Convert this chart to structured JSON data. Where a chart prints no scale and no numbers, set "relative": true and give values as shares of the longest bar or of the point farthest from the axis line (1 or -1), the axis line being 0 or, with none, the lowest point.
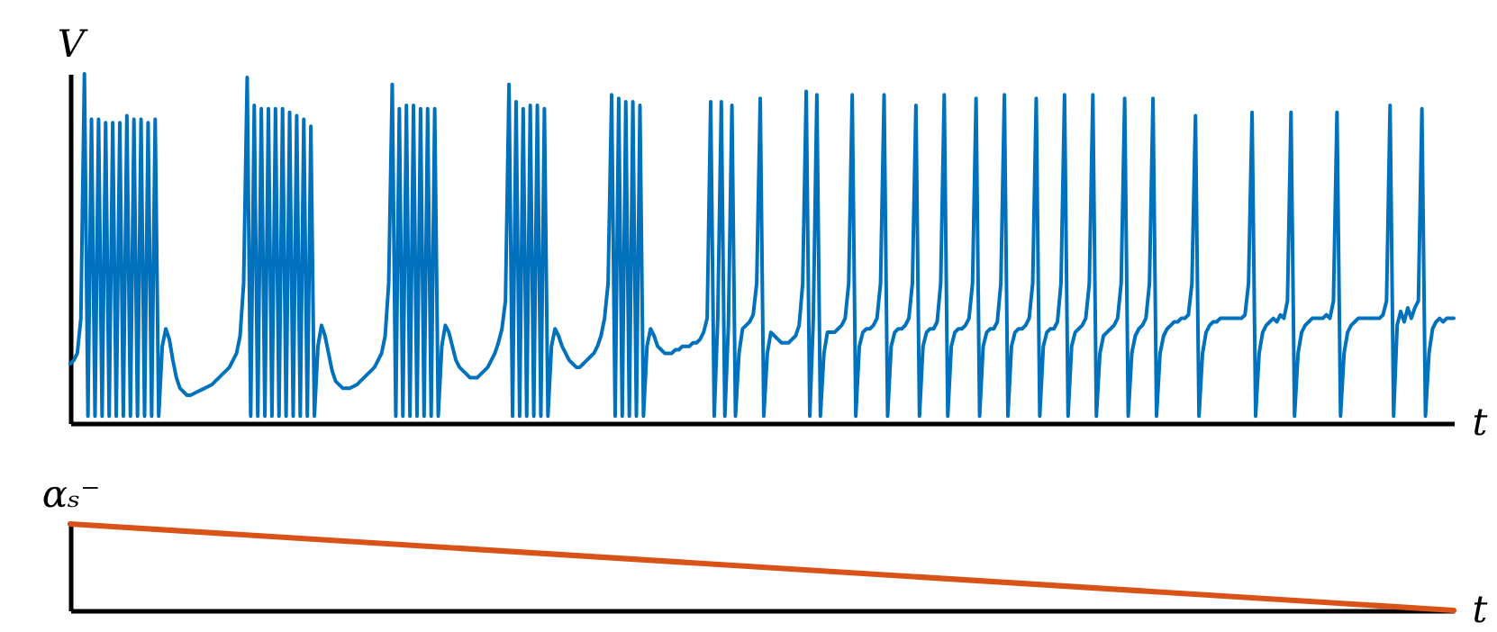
{
  "chart_data": [
    {
      "type": "line",
      "xlabel": "t",
      "ylabel": "V",
      "relative": true,
      "categories": [
        null,
        null,
        null,
        null,
        null,
        null,
        null,
        null,
        null,
        null,
        null,
        null,
        null,
        null,
        null,
        null,
        null,
        null,
        null,
        null,
        null,
        null,
        null,
        null,
        null,
        null,
        null,
        null,
        null,
        null,
        null,
        null,
        null,
        null,
        null,
        null,
        null,
        null,
        null,
        null,
        null,
        null,
        null,
        null,
        null,
        null,
        null,
        null,
        null,
        null,
        null,
        null,
        null,
        null,
        null,
        null,
        null,
        null,
        null,
        null,
        null,
        null,
        null,
        null,
        null,
        null,
        null,
        null,
        null,
        null,
        null,
        null,
        null,
        null,
        null,
        null,
        null,
        null,
        null,
        null,
        null,
        null,
        null,
        null,
        null,
        null,
        null,
        null,
        null,
        null,
        null,
        null,
        null,
        null,
        null,
        null,
        null,
        null,
        null,
        null,
        null,
        null,
        null,
        null,
        null,
        null,
        null,
        null,
        null,
        null,
        null,
        null,
        null,
        null,
        null,
        null,
        null,
        null,
        null,
        null,
        null,
        null,
        null,
        null,
        null,
        null,
        null,
        null,
        null,
        null,
        null,
        null,
        null,
        null,
        null,
        null,
        null,
        null,
        null,
        null,
        null,
        null,
        null,
        null,
        null,
        null,
        null,
        null,
        null,
        null,
        null,
        null,
        null,
        null,
        null,
        null,
        null,
        null,
        null,
        null,
        null,
        null,
        null,
        null,
        null,
        null,
        null,
        null,
        null,
        null,
        null,
        null,
        null,
        null,
        null,
        null,
        null,
        null,
        null,
        null,
        null,
        null,
        null,
        null,
        null,
        null,
        null,
        null,
        null,
        null,
        null,
        null,
        null,
        null,
        null,
        null,
        null,
        null,
        null,
        null,
        null,
        null,
        null,
        null,
        null,
        null,
        null,
        null,
        null,
        null,
        null,
        null,
        null,
        null,
        null,
        null,
        null,
        null,
        null,
        null,
        null,
        null,
        null,
        null,
        null,
        null,
        null,
        null,
        null,
        null,
        null,
        null,
        null,
        null,
        null,
        null,
        null,
        null,
        null,
        null,
        null,
        null,
        null,
        null,
        null,
        null,
        null,
        null,
        null,
        null,
        null,
        null,
        null,
        null,
        null,
        null,
        null,
        null,
        null,
        null,
        null,
        null,
        null,
        null,
        null,
        null,
        null,
        null,
        null,
        null,
        null,
        null,
        null,
        null,
        null,
        null,
        null,
        null,
        null,
        null,
        null,
        null,
        null,
        null,
        null,
        null,
        null,
        null,
        null,
        null,
        null,
        null,
        null,
        null,
        null,
        null,
        null,
        null,
        null,
        null,
        null,
        null,
        null,
        null,
        null,
        null,
        null,
        null,
        null,
        null,
        null,
        null,
        null,
        null,
        null,
        null,
        null,
        null,
        null,
        null,
        null,
        null,
        null,
        null,
        null,
        null,
        null,
        null,
        null,
        null,
        null,
        null,
        null,
        null,
        null,
        null,
        null,
        null,
        null,
        null,
        null,
        null,
        null,
        null,
        null,
        null,
        null,
        null,
        null,
        null,
        null,
        null,
        null,
        null,
        null,
        null,
        null,
        null,
        null,
        null,
        null,
        null,
        null,
        null,
        null,
        null,
        null,
        null,
        null,
        null,
        null,
        null,
        null,
        null,
        null,
        null,
        null,
        null,
        null,
        null,
        null,
        null,
        null,
        null,
        null,
        null,
        null,
        null,
        null,
        null,
        null,
        null
      ],
      "series": [
        {
          "color": "#0072bd",
          "values": [
            0.17,
            0.18,
            0.2,
            0.3,
            1.0,
            0.02,
            0.87,
            0.02,
            0.87,
            0.02,
            0.86,
            0.02,
            0.86,
            0.02,
            0.86,
            0.02,
            0.88,
            0.02,
            0.87,
            0.02,
            0.87,
            0.02,
            0.86,
            0.02,
            0.87,
            0.02,
            0.22,
            0.27,
            0.24,
            0.18,
            0.13,
            0.1,
            0.09,
            0.08,
            0.08,
            0.085,
            0.09,
            0.095,
            0.1,
            0.105,
            0.11,
            0.12,
            0.13,
            0.14,
            0.15,
            0.16,
            0.18,
            0.2,
            0.25,
            0.4,
            0.99,
            0.02,
            0.91,
            0.02,
            0.9,
            0.02,
            0.9,
            0.02,
            0.9,
            0.02,
            0.9,
            0.02,
            0.89,
            0.02,
            0.88,
            0.02,
            0.87,
            0.02,
            0.85,
            0.02,
            0.22,
            0.28,
            0.25,
            0.2,
            0.15,
            0.12,
            0.11,
            0.1,
            0.1,
            0.1,
            0.105,
            0.11,
            0.12,
            0.13,
            0.14,
            0.15,
            0.16,
            0.18,
            0.2,
            0.25,
            0.4,
            0.97,
            0.02,
            0.9,
            0.02,
            0.91,
            0.02,
            0.91,
            0.02,
            0.9,
            0.02,
            0.9,
            0.02,
            0.9,
            0.02,
            0.22,
            0.28,
            0.26,
            0.22,
            0.18,
            0.16,
            0.15,
            0.14,
            0.13,
            0.13,
            0.13,
            0.14,
            0.15,
            0.16,
            0.18,
            0.2,
            0.23,
            0.27,
            0.35,
            0.97,
            0.02,
            0.92,
            0.02,
            0.9,
            0.02,
            0.91,
            0.02,
            0.91,
            0.02,
            0.9,
            0.02,
            0.22,
            0.27,
            0.25,
            0.22,
            0.2,
            0.18,
            0.17,
            0.16,
            0.16,
            0.17,
            0.18,
            0.19,
            0.2,
            0.22,
            0.25,
            0.3,
            0.4,
            0.94,
            0.02,
            0.93,
            0.02,
            0.92,
            0.02,
            0.92,
            0.02,
            0.91,
            0.02,
            0.22,
            0.27,
            0.25,
            0.22,
            0.21,
            0.2,
            0.2,
            0.2,
            0.21,
            0.21,
            0.22,
            0.22,
            0.22,
            0.23,
            0.23,
            0.24,
            0.26,
            0.3,
            0.92,
            0.02,
            0.3,
            0.92,
            0.02,
            0.28,
            0.91,
            0.02,
            0.2,
            0.27,
            0.28,
            0.29,
            0.31,
            0.4,
            0.93,
            0.02,
            0.2,
            0.26,
            0.25,
            0.24,
            0.23,
            0.23,
            0.23,
            0.24,
            0.25,
            0.28,
            0.4,
            0.95,
            0.02,
            0.3,
            0.94,
            0.02,
            0.2,
            0.26,
            0.26,
            0.26,
            0.27,
            0.28,
            0.3,
            0.4,
            0.94,
            0.02,
            0.22,
            0.26,
            0.27,
            0.27,
            0.28,
            0.3,
            0.4,
            0.94,
            0.02,
            0.22,
            0.26,
            0.27,
            0.27,
            0.28,
            0.3,
            0.4,
            0.91,
            0.02,
            0.22,
            0.26,
            0.27,
            0.27,
            0.29,
            0.4,
            0.94,
            0.02,
            0.22,
            0.26,
            0.27,
            0.27,
            0.28,
            0.3,
            0.4,
            0.93,
            0.02,
            0.22,
            0.26,
            0.27,
            0.27,
            0.29,
            0.4,
            0.94,
            0.02,
            0.22,
            0.26,
            0.27,
            0.27,
            0.28,
            0.3,
            0.4,
            0.93,
            0.02,
            0.22,
            0.26,
            0.27,
            0.27,
            0.29,
            0.4,
            0.94,
            0.02,
            0.22,
            0.26,
            0.27,
            0.28,
            0.3,
            0.4,
            0.94,
            0.02,
            0.2,
            0.25,
            0.26,
            0.27,
            0.28,
            0.3,
            0.4,
            0.93,
            0.02,
            0.2,
            0.25,
            0.27,
            0.28,
            0.3,
            0.4,
            0.93,
            0.02,
            0.2,
            0.25,
            0.27,
            0.28,
            0.29,
            0.29,
            0.3,
            0.3,
            0.31,
            0.4,
            0.88,
            0.02,
            0.2,
            0.26,
            0.28,
            0.29,
            0.29,
            0.3,
            0.3,
            0.3,
            0.3,
            0.3,
            0.3,
            0.3,
            0.31,
            0.4,
            0.89,
            0.02,
            0.2,
            0.26,
            0.28,
            0.29,
            0.3,
            0.29,
            0.31,
            0.3,
            0.35,
            0.89,
            0.02,
            0.2,
            0.26,
            0.28,
            0.29,
            0.3,
            0.3,
            0.3,
            0.3,
            0.31,
            0.3,
            0.35,
            0.89,
            0.02,
            0.2,
            0.26,
            0.28,
            0.29,
            0.3,
            0.3,
            0.3,
            0.3,
            0.3,
            0.3,
            0.3,
            0.31,
            0.35,
            0.91,
            0.02,
            0.28,
            0.32,
            0.29,
            0.33,
            0.3,
            0.33,
            0.35,
            0.9,
            0.02,
            0.2,
            0.27,
            0.29,
            0.3,
            0.29,
            0.3,
            0.3,
            0.3
          ]
        }
      ]
    },
    {
      "type": "line",
      "xlabel": "t",
      "ylabel": "αₛ⁻",
      "relative": true,
      "categories": [
        null,
        null
      ],
      "series": [
        {
          "color": "#d95319",
          "values": [
            1,
            0
          ]
        }
      ]
    }
  ]
}
